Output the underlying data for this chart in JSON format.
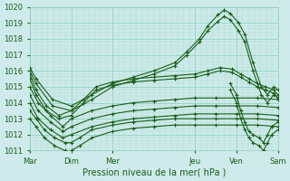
{
  "xlabel": "Pression niveau de la mer( hPa )",
  "bg_color": "#ceeaea",
  "grid_major_color": "#88ccbb",
  "grid_minor_color": "#aaddcc",
  "line_color": "#1a5e1a",
  "ylim": [
    1011,
    1020
  ],
  "xlim": [
    0,
    6
  ],
  "day_labels": [
    "Mar",
    "Dim",
    "Mer",
    "Jeu",
    "Ven",
    "Sam"
  ],
  "day_positions": [
    0,
    1,
    2,
    4,
    5,
    6
  ],
  "series": [
    {
      "x": [
        0.0,
        0.15,
        0.55,
        1.0,
        1.5,
        2.0,
        2.5,
        3.0,
        3.5,
        3.8,
        4.1,
        4.3,
        4.55,
        4.7,
        4.85,
        5.05,
        5.2,
        5.4,
        5.6,
        5.75,
        5.9,
        6.0
      ],
      "y": [
        1016.2,
        1015.5,
        1014.2,
        1013.8,
        1014.5,
        1015.2,
        1015.6,
        1016.0,
        1016.5,
        1017.2,
        1018.0,
        1018.8,
        1019.5,
        1019.8,
        1019.6,
        1019.0,
        1018.3,
        1016.5,
        1015.0,
        1014.5,
        1015.0,
        1014.8
      ]
    },
    {
      "x": [
        0.0,
        0.15,
        0.55,
        1.0,
        1.5,
        2.0,
        2.5,
        3.0,
        3.5,
        3.8,
        4.1,
        4.3,
        4.55,
        4.7,
        4.85,
        5.05,
        5.2,
        5.4,
        5.6,
        5.75,
        5.9,
        6.0
      ],
      "y": [
        1016.0,
        1015.2,
        1013.8,
        1013.5,
        1014.2,
        1015.0,
        1015.4,
        1015.8,
        1016.3,
        1017.0,
        1017.8,
        1018.5,
        1019.1,
        1019.4,
        1019.2,
        1018.5,
        1017.8,
        1016.0,
        1014.5,
        1014.0,
        1014.5,
        1014.3
      ]
    },
    {
      "x": [
        0.0,
        0.15,
        0.4,
        0.7,
        1.0,
        1.3,
        1.6,
        2.0,
        2.5,
        3.0,
        3.5,
        4.0,
        4.3,
        4.6,
        4.9,
        5.1,
        5.3,
        5.5,
        5.7,
        5.9,
        6.0
      ],
      "y": [
        1015.8,
        1014.8,
        1013.8,
        1013.2,
        1013.5,
        1014.2,
        1015.0,
        1015.3,
        1015.5,
        1015.6,
        1015.7,
        1015.8,
        1016.0,
        1016.2,
        1016.1,
        1015.8,
        1015.5,
        1015.2,
        1015.0,
        1014.8,
        1014.5
      ]
    },
    {
      "x": [
        0.0,
        0.15,
        0.4,
        0.7,
        1.0,
        1.3,
        1.6,
        2.0,
        2.5,
        3.0,
        3.5,
        4.0,
        4.3,
        4.6,
        4.9,
        5.1,
        5.3,
        5.5,
        5.7,
        5.9,
        6.0
      ],
      "y": [
        1015.5,
        1014.5,
        1013.5,
        1013.0,
        1013.2,
        1014.0,
        1014.8,
        1015.1,
        1015.3,
        1015.4,
        1015.5,
        1015.6,
        1015.8,
        1016.0,
        1015.9,
        1015.6,
        1015.3,
        1015.0,
        1014.8,
        1014.6,
        1014.3
      ]
    },
    {
      "x": [
        0.0,
        0.2,
        0.5,
        0.8,
        1.0,
        1.5,
        2.0,
        2.5,
        3.0,
        3.5,
        4.0,
        4.5,
        5.0,
        5.5,
        6.0
      ],
      "y": [
        1015.0,
        1014.0,
        1013.2,
        1012.5,
        1013.0,
        1013.5,
        1013.8,
        1014.0,
        1014.1,
        1014.2,
        1014.3,
        1014.3,
        1014.3,
        1014.3,
        1014.2
      ]
    },
    {
      "x": [
        0.0,
        0.2,
        0.5,
        0.8,
        1.0,
        1.5,
        2.0,
        2.5,
        3.0,
        3.5,
        4.0,
        4.5,
        5.0,
        5.5,
        6.0
      ],
      "y": [
        1014.5,
        1013.5,
        1012.8,
        1012.2,
        1012.5,
        1013.0,
        1013.3,
        1013.5,
        1013.6,
        1013.7,
        1013.8,
        1013.8,
        1013.8,
        1013.8,
        1013.7
      ]
    },
    {
      "x": [
        0.0,
        0.2,
        0.5,
        0.8,
        1.0,
        1.5,
        2.0,
        2.5,
        3.0,
        3.5,
        4.0,
        4.5,
        5.0,
        5.5,
        6.0
      ],
      "y": [
        1014.0,
        1013.0,
        1012.3,
        1011.8,
        1012.0,
        1012.5,
        1012.8,
        1013.0,
        1013.1,
        1013.2,
        1013.3,
        1013.3,
        1013.3,
        1013.3,
        1013.2
      ]
    },
    {
      "x": [
        0.0,
        0.15,
        0.35,
        0.6,
        0.85,
        1.0,
        1.2,
        1.5,
        2.0,
        2.5,
        3.0,
        3.5,
        4.0,
        4.5,
        5.0,
        5.5,
        6.0
      ],
      "y": [
        1013.5,
        1013.0,
        1012.3,
        1011.8,
        1011.5,
        1011.5,
        1011.8,
        1012.3,
        1012.6,
        1012.8,
        1012.9,
        1013.0,
        1013.0,
        1013.0,
        1013.0,
        1013.0,
        1012.9
      ]
    },
    {
      "x": [
        0.0,
        0.15,
        0.35,
        0.6,
        0.85,
        1.0,
        1.2,
        1.5,
        2.0,
        2.5,
        3.0,
        3.5,
        4.0,
        4.5,
        5.0,
        5.5,
        6.0
      ],
      "y": [
        1013.0,
        1012.5,
        1011.8,
        1011.3,
        1011.0,
        1011.0,
        1011.3,
        1011.8,
        1012.2,
        1012.4,
        1012.5,
        1012.6,
        1012.6,
        1012.6,
        1012.6,
        1012.6,
        1012.5
      ]
    },
    {
      "x": [
        4.85,
        5.0,
        5.1,
        5.2,
        5.3,
        5.4,
        5.55,
        5.65,
        5.75,
        5.85,
        6.0
      ],
      "y": [
        1015.2,
        1014.5,
        1013.5,
        1012.8,
        1012.2,
        1012.0,
        1011.8,
        1011.5,
        1012.0,
        1012.5,
        1012.8
      ]
    },
    {
      "x": [
        4.85,
        5.0,
        5.1,
        5.2,
        5.3,
        5.4,
        5.55,
        5.65,
        5.75,
        5.85,
        6.0
      ],
      "y": [
        1014.8,
        1014.0,
        1013.0,
        1012.3,
        1011.8,
        1011.5,
        1011.3,
        1011.0,
        1011.5,
        1012.0,
        1012.3
      ]
    }
  ]
}
